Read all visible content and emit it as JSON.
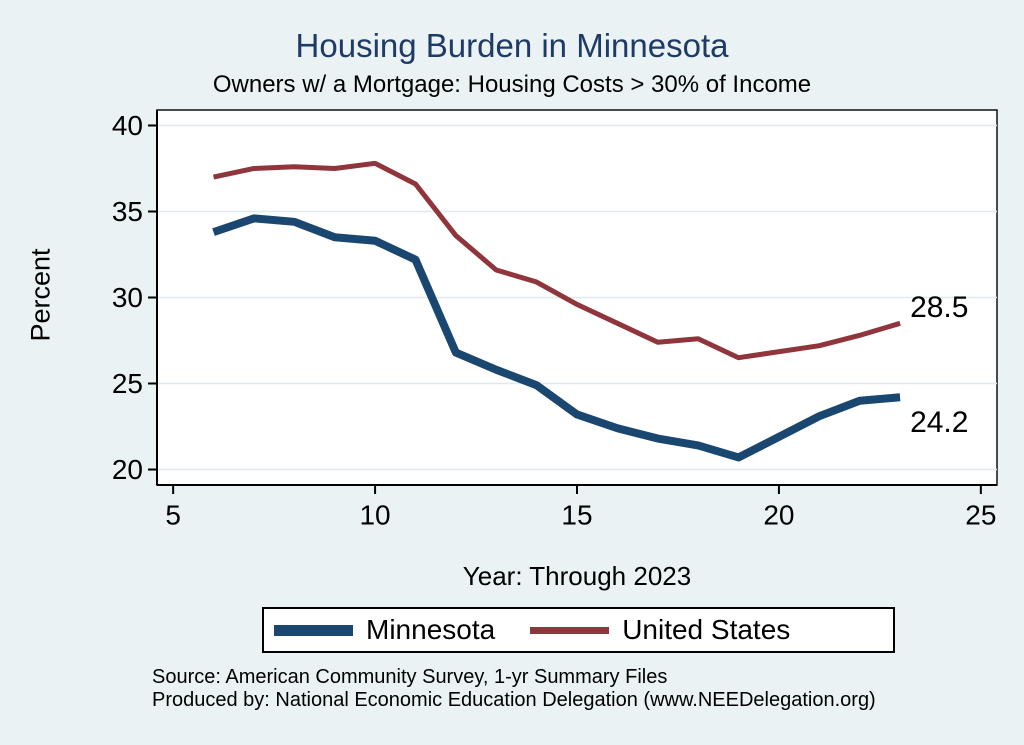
{
  "page": {
    "background": "#eaf2f3"
  },
  "chart_data": {
    "type": "line",
    "title": "Housing Burden in Minnesota",
    "subtitle": "Owners w/ a Mortgage: Housing Costs > 30% of Income",
    "xlabel": "Year: Through 2023",
    "ylabel": "Percent",
    "title_color": "#1e3a66",
    "plot_bg": "#ffffff",
    "grid": true,
    "grid_color": "#dfeaec",
    "axis_color": "#000000",
    "text_color": "#000000",
    "xlim": [
      4.6,
      25.4
    ],
    "ylim": [
      19.1,
      40.9
    ],
    "xticks": [
      5,
      10,
      15,
      20,
      25
    ],
    "yticks": [
      20,
      25,
      30,
      35,
      40
    ],
    "legend_position": "bottom",
    "x": [
      6,
      7,
      8,
      9,
      10,
      11,
      12,
      13,
      14,
      15,
      16,
      17,
      18,
      19,
      21,
      22,
      23
    ],
    "series": [
      {
        "name": "Minnesota",
        "color": "#1a476f",
        "line_width": 8,
        "values": [
          33.8,
          34.6,
          34.4,
          33.5,
          33.3,
          32.2,
          26.8,
          25.8,
          24.9,
          23.2,
          22.4,
          21.8,
          21.4,
          20.7,
          23.1,
          24.0,
          24.2
        ],
        "end_label": "24.2",
        "end_label_dy": 25
      },
      {
        "name": "United States",
        "color": "#90353b",
        "line_width": 5,
        "values": [
          37.0,
          37.5,
          37.6,
          37.5,
          37.8,
          36.6,
          33.6,
          31.6,
          30.9,
          29.6,
          28.5,
          27.4,
          27.6,
          26.5,
          27.2,
          27.8,
          28.5
        ],
        "end_label": "28.5",
        "end_label_dy": -16
      }
    ],
    "source_lines": [
      "Source: American Community Survey, 1-yr Summary Files",
      "Produced by: National Economic Education Delegation (www.NEEDelegation.org)"
    ]
  }
}
